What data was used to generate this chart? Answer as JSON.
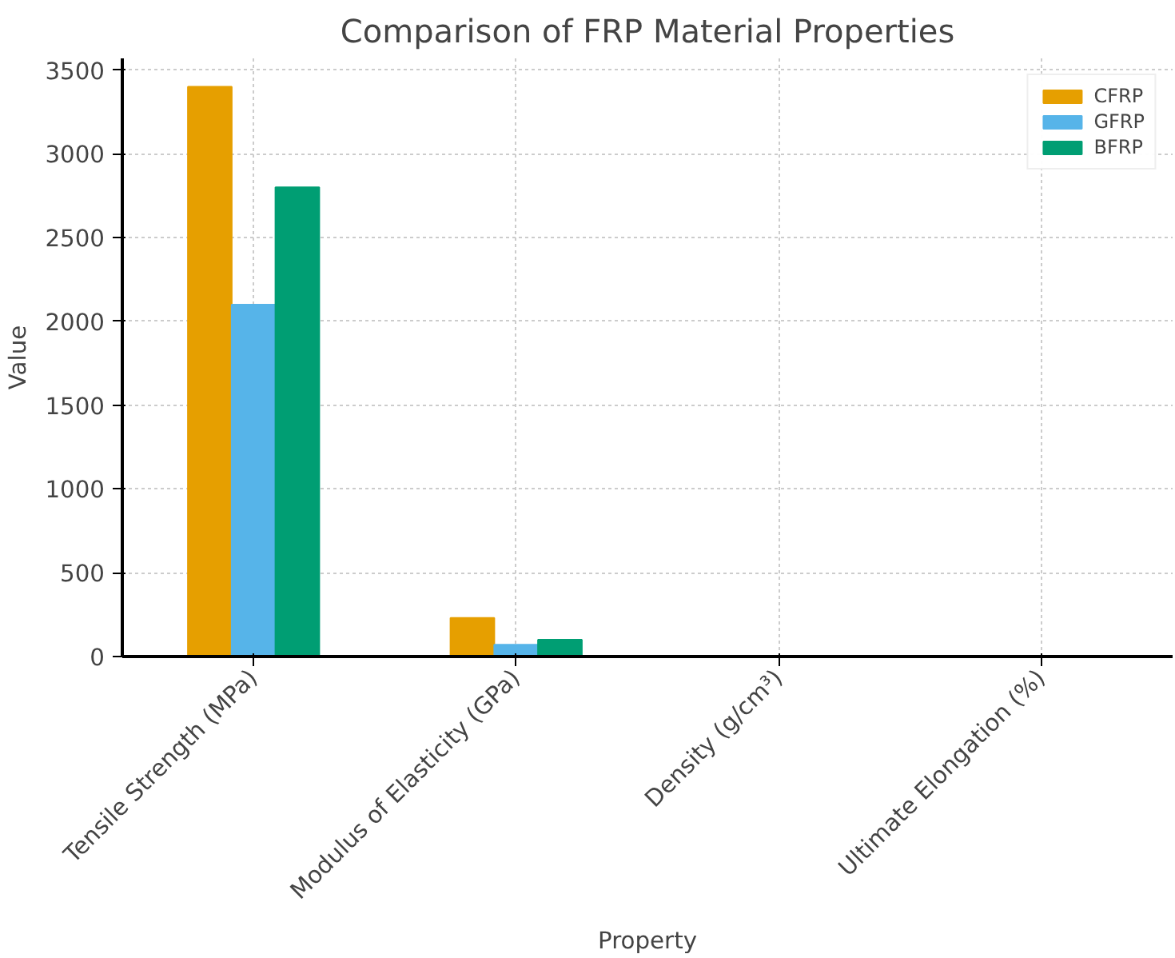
{
  "chart_data": {
    "type": "bar",
    "title": "Comparison of FRP Material Properties",
    "xlabel": "Property",
    "ylabel": "Value",
    "categories": [
      "Tensile Strength (MPa)",
      "Modulus of Elasticity (GPa)",
      "Density (g/cm³)",
      "Ultimate Elongation (%)"
    ],
    "series": [
      {
        "name": "CFRP",
        "color": "#e69f00",
        "values": [
          3400,
          230,
          0,
          0
        ]
      },
      {
        "name": "GFRP",
        "color": "#56b4e9",
        "values": [
          2100,
          70,
          0,
          0
        ]
      },
      {
        "name": "BFRP",
        "color": "#009e73",
        "values": [
          2800,
          100,
          0,
          0
        ]
      }
    ],
    "ylim": [
      0,
      3570
    ],
    "yticks": [
      0,
      500,
      1000,
      1500,
      2000,
      2500,
      3000,
      3500
    ],
    "grid": true,
    "legend": "top right"
  }
}
